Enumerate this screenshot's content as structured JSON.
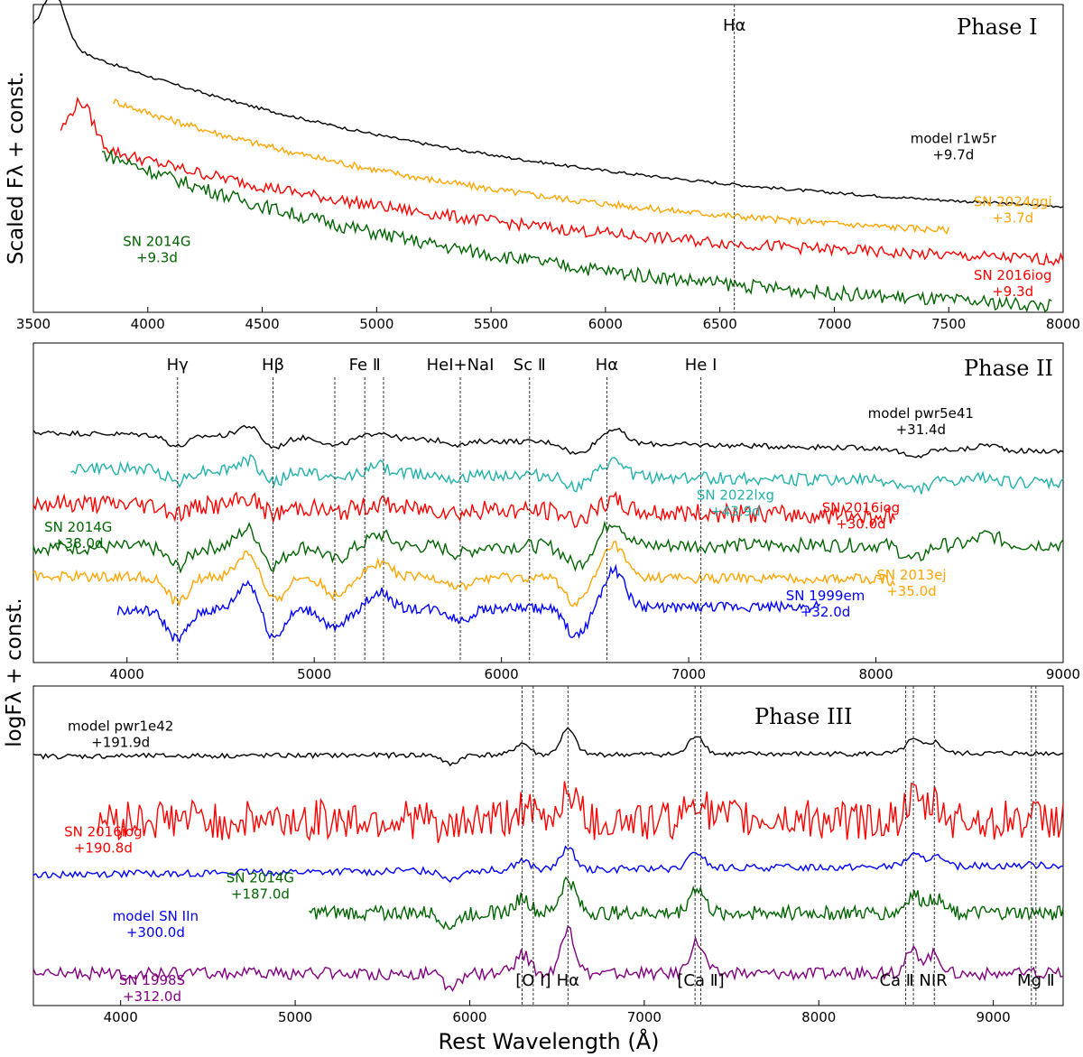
{
  "figure": {
    "ylabel_top": "Scaled Fλ + const.",
    "ylabel_bottom": "logFλ + const.",
    "xlabel": "Rest Wavelength (Å)"
  },
  "chart_data": [
    {
      "type": "line",
      "title": "Phase I",
      "xlabel": "Rest Wavelength (Å)",
      "ylabel": "Scaled Fλ + const.",
      "xlim": [
        3500,
        8000
      ],
      "ylim": [
        0,
        10
      ],
      "xticks": [
        3500,
        4000,
        4500,
        5000,
        5500,
        6000,
        6500,
        7000,
        7500,
        8000
      ],
      "lines": [
        {
          "x": 6563,
          "label": "Hα"
        }
      ],
      "series": [
        {
          "name": "model r1w5r",
          "phase": "+9.7d",
          "color": "#000000",
          "x_start": 3500,
          "x_end": 8000,
          "baseline": 3.5,
          "slope": 6.3,
          "noise": 0.03,
          "peak": 1.6,
          "labelx": 7520,
          "labely": 5.5
        },
        {
          "name": "SN 2024ggi",
          "phase": "+3.7d",
          "color": "#ffa500",
          "x_start": 3850,
          "x_end": 7500,
          "baseline": 2.55,
          "slope": 4.9,
          "noise": 0.07,
          "peak": 0,
          "labelx": 7780,
          "labely": 3.45
        },
        {
          "name": "SN 2016iog",
          "phase": "+9.3d",
          "color": "#ff0000",
          "x_start": 3620,
          "x_end": 8000,
          "baseline": 1.75,
          "slope": 4.5,
          "noise": 0.12,
          "peak": 1.3,
          "labelx": 7780,
          "labely": 1.05
        },
        {
          "name": "SN 2014G",
          "phase": "+9.3d",
          "color": "#006400",
          "x_start": 3800,
          "x_end": 7950,
          "baseline": 0.25,
          "slope": 5.6,
          "noise": 0.14,
          "peak": 0,
          "labelx": 4040,
          "labely": 2.15
        }
      ]
    },
    {
      "type": "line",
      "title": "Phase II",
      "ylabel": "logFλ + const.",
      "xlim": [
        3500,
        9000
      ],
      "ylim": [
        0,
        10
      ],
      "xticks": [
        4000,
        5000,
        6000,
        7000,
        8000,
        9000
      ],
      "lines": [
        {
          "x": 4270,
          "label": "Hγ"
        },
        {
          "x": 4780,
          "label": "Hβ"
        },
        {
          "x": 5110,
          "label": ""
        },
        {
          "x": 5270,
          "label": "Fe Ⅱ"
        },
        {
          "x": 5370,
          "label": ""
        },
        {
          "x": 5780,
          "label": "HeI+NaI"
        },
        {
          "x": 6150,
          "label": "Sc Ⅱ"
        },
        {
          "x": 6563,
          "label": "Hα"
        },
        {
          "x": 7065,
          "label": "He I"
        }
      ],
      "series": [
        {
          "name": "model pwr5e41",
          "phase": "+31.4d",
          "color": "#000000",
          "x_start": 3500,
          "x_end": 9000,
          "baseline": 7.2,
          "slope": -0.6,
          "noise": 0.05,
          "depth": 0.7,
          "labelx": 8240,
          "labely": 7.65
        },
        {
          "name": "SN 2022lxg",
          "phase": "+43.9d",
          "color": "#20b2aa",
          "x_start": 3700,
          "x_end": 9000,
          "baseline": 6.1,
          "slope": -0.5,
          "noise": 0.12,
          "depth": 0.7,
          "labelx": 7250,
          "labely": 5.1
        },
        {
          "name": "SN 2016iog",
          "phase": "+30.0d",
          "color": "#ff0000",
          "x_start": 3500,
          "x_end": 8100,
          "baseline": 5.0,
          "slope": -0.5,
          "noise": 0.18,
          "depth": 0.5,
          "labelx": 7920,
          "labely": 4.7
        },
        {
          "name": "SN 2014G",
          "phase": "+38.0d",
          "color": "#006400",
          "x_start": 3500,
          "x_end": 9000,
          "baseline": 3.6,
          "slope": 0.1,
          "noise": 0.14,
          "depth": 1.2,
          "labelx": 3740,
          "labely": 4.1
        },
        {
          "name": "SN 2013ej",
          "phase": "+35.0d",
          "color": "#ffa500",
          "x_start": 3500,
          "x_end": 8100,
          "baseline": 2.7,
          "slope": -0.1,
          "noise": 0.1,
          "depth": 1.6,
          "labelx": 8190,
          "labely": 2.6
        },
        {
          "name": "SN 1999em",
          "phase": "+32.0d",
          "color": "#0000ff",
          "x_start": 3950,
          "x_end": 7700,
          "baseline": 1.6,
          "slope": 0.2,
          "noise": 0.1,
          "depth": 1.8,
          "labelx": 7730,
          "labely": 1.95
        }
      ]
    },
    {
      "type": "line",
      "title": "Phase III",
      "ylabel": "logFλ + const.",
      "xlim": [
        3500,
        9400
      ],
      "ylim": [
        0,
        10
      ],
      "xticks": [
        4000,
        5000,
        6000,
        7000,
        8000,
        9000
      ],
      "lines": [
        {
          "x": 6300,
          "label": ""
        },
        {
          "x": 6364,
          "label": "[O I]"
        },
        {
          "x": 6563,
          "label": "Hα"
        },
        {
          "x": 7291,
          "label": ""
        },
        {
          "x": 7324,
          "label": "[Ca Ⅱ]"
        },
        {
          "x": 8498,
          "label": ""
        },
        {
          "x": 8542,
          "label": "Ca Ⅱ NIR"
        },
        {
          "x": 8662,
          "label": ""
        },
        {
          "x": 9218,
          "label": ""
        },
        {
          "x": 9244,
          "label": "Mg Ⅱ"
        }
      ],
      "series": [
        {
          "name": "model pwr1e42",
          "phase": "+191.9d",
          "color": "#000000",
          "x_start": 3500,
          "x_end": 9400,
          "baseline": 7.8,
          "slope": 0.1,
          "noise": 0.05,
          "amp": 1.2,
          "labelx": 4000,
          "labely": 8.6
        },
        {
          "name": "SN 2016iog",
          "phase": "+190.8d",
          "color": "#ff0000",
          "x_start": 3870,
          "x_end": 9400,
          "baseline": 5.8,
          "slope": 0.0,
          "noise": 0.4,
          "amp": 1.5,
          "labelx": 3900,
          "labely": 5.3
        },
        {
          "name": "model SN IIn",
          "phase": "+300.0d",
          "color": "#0000ff",
          "x_start": 3500,
          "x_end": 9400,
          "baseline": 4.1,
          "slope": 0.3,
          "noise": 0.07,
          "amp": 1.0,
          "labelx": 4200,
          "labely": 2.65
        },
        {
          "name": "SN 2014G",
          "phase": "+187.0d",
          "color": "#006400",
          "x_start": 5080,
          "x_end": 9400,
          "baseline": 2.9,
          "slope": 0.0,
          "noise": 0.14,
          "amp": 1.6,
          "labelx": 4800,
          "labely": 3.85
        },
        {
          "name": "SN 1998S",
          "phase": "+312.0d",
          "color": "#800080",
          "x_start": 3500,
          "x_end": 9400,
          "baseline": 1.0,
          "slope": 0.0,
          "noise": 0.12,
          "amp": 2.0,
          "labelx": 4180,
          "labely": 0.65
        }
      ]
    }
  ]
}
